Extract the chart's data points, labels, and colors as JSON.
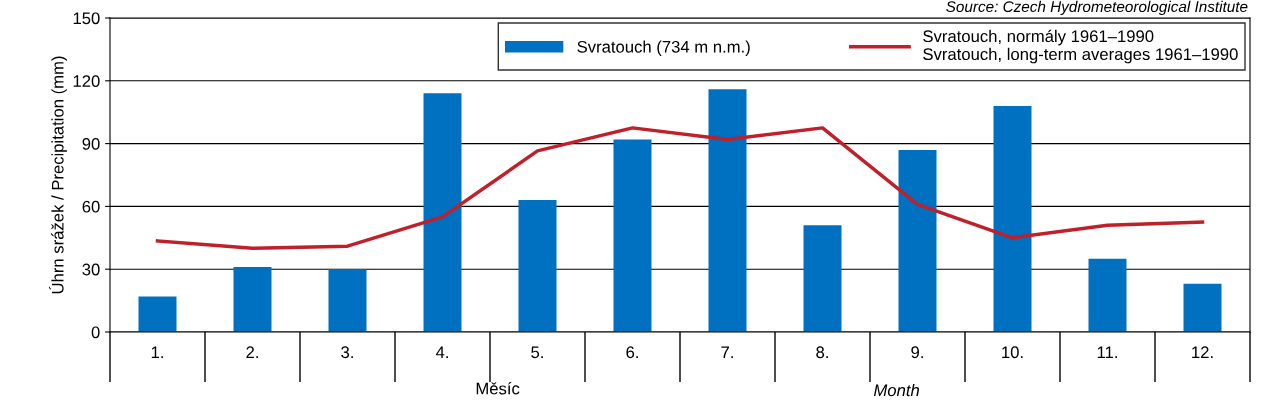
{
  "chart_data": {
    "type": "bar",
    "ylabel": "Úhrn srážek / Precipitation (mm)",
    "xlabel": "Měsíc",
    "categories": [
      "1.",
      "2.",
      "3.",
      "4.",
      "5.",
      "6.",
      "7.",
      "8.",
      "9.",
      "10.",
      "11.",
      "12."
    ],
    "series": [
      {
        "name": "Svratouch (734 m n.m.)",
        "color": "#0070c0",
        "values": [
          17,
          31,
          30,
          114,
          63,
          92,
          116,
          51,
          87,
          108,
          35,
          23
        ]
      },
      {
        "name": "Svratouch, normály 1961–1990\nSvratouch, long-term averages 1961–1990",
        "type": "line",
        "color": "#c0202a",
        "values": [
          43.5,
          40,
          41,
          55,
          86.5,
          97.5,
          92,
          97.5,
          61,
          45,
          51,
          52.5
        ]
      }
    ],
    "ylim": [
      0,
      150
    ],
    "yticks": [
      0,
      30,
      60,
      90,
      120,
      150
    ],
    "grid": "y",
    "legend": "top right",
    "annotations": [
      "Month",
      "Source: Czech Hydrometeorological Institute"
    ]
  }
}
